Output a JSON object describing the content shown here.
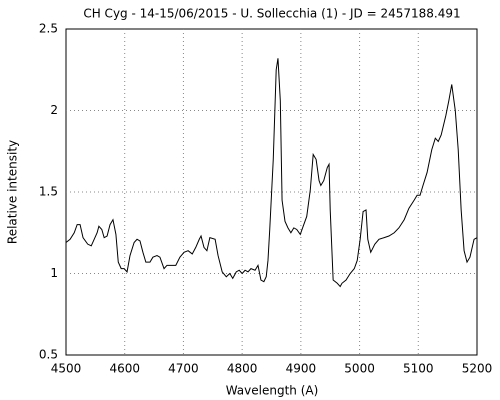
{
  "chart_data": {
    "type": "line",
    "title": "CH Cyg - 14-15/06/2015 - U. Sollecchia (1) - JD = 2457188.491",
    "xlabel": "Wavelength (A)",
    "ylabel": "Relative intensity",
    "xlim": [
      4500,
      5200
    ],
    "xticks": [
      4500,
      4600,
      4700,
      4800,
      4900,
      5000,
      5100,
      5200
    ],
    "ylim": [
      0.5,
      2.5
    ],
    "yticks": [
      0.5,
      1,
      1.5,
      2,
      2.5
    ],
    "grid": true,
    "series": [
      {
        "color": "#000000",
        "x": [
          4500,
          4507,
          4514,
          4519,
          4524,
          4529,
          4537,
          4543,
          4548,
          4553,
          4556,
          4561,
          4565,
          4570,
          4575,
          4580,
          4585,
          4589,
          4594,
          4599,
          4604,
          4609,
          4616,
          4621,
          4626,
          4631,
          4636,
          4643,
          4648,
          4655,
          4660,
          4667,
          4672,
          4681,
          4687,
          4694,
          4701,
          4708,
          4715,
          4721,
          4727,
          4730,
          4735,
          4740,
          4745,
          4754,
          4759,
          4766,
          4773,
          4779,
          4784,
          4790,
          4795,
          4800,
          4805,
          4810,
          4815,
          4822,
          4827,
          4832,
          4837,
          4841,
          4844,
          4847,
          4853,
          4858,
          4861,
          4865,
          4868,
          4873,
          4878,
          4883,
          4888,
          4893,
          4899,
          4904,
          4910,
          4916,
          4921,
          4926,
          4931,
          4934,
          4939,
          4945,
          4948,
          4950,
          4955,
          4962,
          4967,
          4970,
          4977,
          4984,
          4991,
          4996,
          5001,
          5006,
          5011,
          5014,
          5019,
          5026,
          5033,
          5042,
          5050,
          5059,
          5067,
          5076,
          5084,
          5093,
          5098,
          5103,
          5108,
          5115,
          5123,
          5129,
          5134,
          5139,
          5147,
          5152,
          5157,
          5163,
          5168,
          5173,
          5178,
          5183,
          5188,
          5195,
          5200
        ],
        "values": [
          1.19,
          1.21,
          1.25,
          1.3,
          1.3,
          1.22,
          1.18,
          1.17,
          1.21,
          1.25,
          1.29,
          1.27,
          1.22,
          1.23,
          1.3,
          1.33,
          1.24,
          1.07,
          1.03,
          1.03,
          1.01,
          1.11,
          1.19,
          1.21,
          1.2,
          1.13,
          1.07,
          1.07,
          1.1,
          1.11,
          1.1,
          1.03,
          1.05,
          1.05,
          1.05,
          1.1,
          1.13,
          1.14,
          1.12,
          1.16,
          1.21,
          1.23,
          1.16,
          1.14,
          1.22,
          1.21,
          1.11,
          1.01,
          0.98,
          1.0,
          0.97,
          1.01,
          1.02,
          1.0,
          1.02,
          1.01,
          1.03,
          1.02,
          1.05,
          0.96,
          0.95,
          0.98,
          1.08,
          1.27,
          1.7,
          2.25,
          2.32,
          2.06,
          1.45,
          1.32,
          1.28,
          1.25,
          1.28,
          1.27,
          1.24,
          1.29,
          1.35,
          1.51,
          1.73,
          1.7,
          1.57,
          1.54,
          1.57,
          1.65,
          1.67,
          1.39,
          0.96,
          0.94,
          0.92,
          0.94,
          0.96,
          1.0,
          1.03,
          1.08,
          1.21,
          1.38,
          1.39,
          1.21,
          1.13,
          1.18,
          1.21,
          1.22,
          1.23,
          1.25,
          1.28,
          1.33,
          1.4,
          1.45,
          1.48,
          1.48,
          1.54,
          1.62,
          1.76,
          1.83,
          1.81,
          1.85,
          1.97,
          2.06,
          2.16,
          2.0,
          1.76,
          1.39,
          1.14,
          1.07,
          1.1,
          1.21,
          1.22
        ]
      }
    ]
  }
}
